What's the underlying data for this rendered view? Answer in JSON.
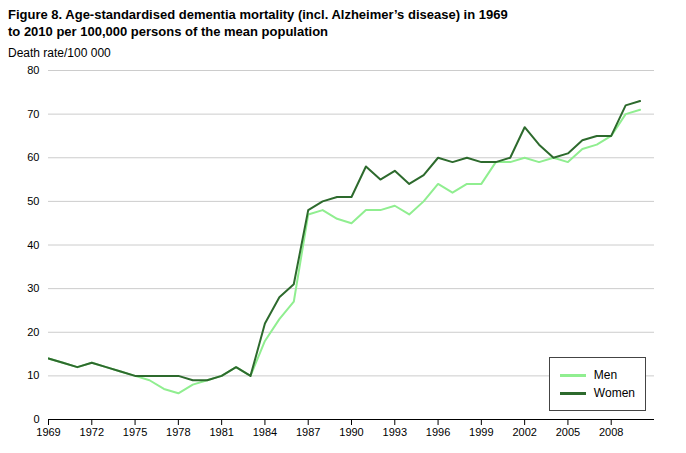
{
  "chart_data": {
    "type": "line",
    "title": "Figure 8. Age-standardised dementia mortality (incl. Alzheimer’s disease) in 1969\nto 2010 per 100,000 persons of the mean population",
    "ylabel": "Death rate/100 000",
    "x": [
      1969,
      1970,
      1971,
      1972,
      1973,
      1974,
      1975,
      1976,
      1977,
      1978,
      1979,
      1980,
      1981,
      1982,
      1983,
      1984,
      1985,
      1986,
      1987,
      1988,
      1989,
      1990,
      1991,
      1992,
      1993,
      1994,
      1995,
      1996,
      1997,
      1998,
      1999,
      2000,
      2001,
      2002,
      2003,
      2004,
      2005,
      2006,
      2007,
      2008,
      2009,
      2010
    ],
    "series": [
      {
        "name": "Men",
        "color": "#90EE90",
        "values": [
          14,
          13,
          12,
          13,
          12,
          11,
          10,
          9,
          7,
          6,
          8,
          9,
          10,
          12,
          10,
          18,
          23,
          27,
          47,
          48,
          46,
          45,
          48,
          48,
          49,
          47,
          50,
          54,
          52,
          54,
          54,
          59,
          59,
          60,
          59,
          60,
          59,
          62,
          63,
          65,
          70,
          71
        ]
      },
      {
        "name": "Women",
        "color": "#2d6a2d",
        "values": [
          14,
          13,
          12,
          13,
          12,
          11,
          10,
          10,
          10,
          10,
          9,
          9,
          10,
          12,
          10,
          22,
          28,
          31,
          48,
          50,
          51,
          51,
          58,
          55,
          57,
          54,
          56,
          60,
          59,
          60,
          59,
          59,
          60,
          67,
          63,
          60,
          61,
          64,
          65,
          65,
          72,
          73
        ]
      }
    ],
    "xlim": [
      1969,
      2011
    ],
    "xticks": [
      1969,
      1972,
      1975,
      1978,
      1981,
      1984,
      1987,
      1990,
      1993,
      1996,
      1999,
      2002,
      2005,
      2008
    ],
    "ylim": [
      0,
      80
    ],
    "yticks": [
      0,
      10,
      20,
      30,
      40,
      50,
      60,
      70,
      80
    ],
    "grid": true,
    "legend": "lower right"
  }
}
